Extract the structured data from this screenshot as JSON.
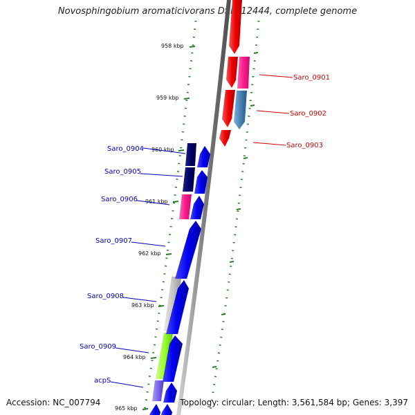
{
  "title": "Novosphingobium aromaticivorans DSM 12444, complete genome",
  "accession": "Accession: NC_007794",
  "topology": "Topology: circular; Length: 3,561,584 bp; Genes: 3,397",
  "ticks": [
    "958 kbp",
    "959 kbp",
    "960 kbp",
    "961 kbp",
    "962 kbp",
    "963 kbp",
    "964 kbp",
    "965 kbp"
  ],
  "genes_forward": [
    {
      "name": "Saro_0901",
      "color": "#ff1a8c"
    },
    {
      "name": "Saro_0902",
      "color": "#4682b4"
    },
    {
      "name": "Saro_0903",
      "color": "#ee0000"
    }
  ],
  "genes_reverse": [
    {
      "name": "Saro_0904",
      "color": "#000066"
    },
    {
      "name": "Saro_0905",
      "color": "#000066"
    },
    {
      "name": "Saro_0906",
      "color": "#ff1a8c"
    },
    {
      "name": "Saro_0907",
      "color": "#0000ee"
    },
    {
      "name": "Saro_0908",
      "color": "#c8c8c8"
    },
    {
      "name": "Saro_0909",
      "color": "#99ff33"
    },
    {
      "name": "acpS",
      "color": "#7b68ee"
    }
  ],
  "colors": {
    "backbone": "#808080",
    "tick": "#2a7a2a",
    "forward_label": "#cc0000",
    "reverse_label": "#0000bb",
    "cds_forward": "#ee0000",
    "cds_reverse": "#0000ee"
  }
}
